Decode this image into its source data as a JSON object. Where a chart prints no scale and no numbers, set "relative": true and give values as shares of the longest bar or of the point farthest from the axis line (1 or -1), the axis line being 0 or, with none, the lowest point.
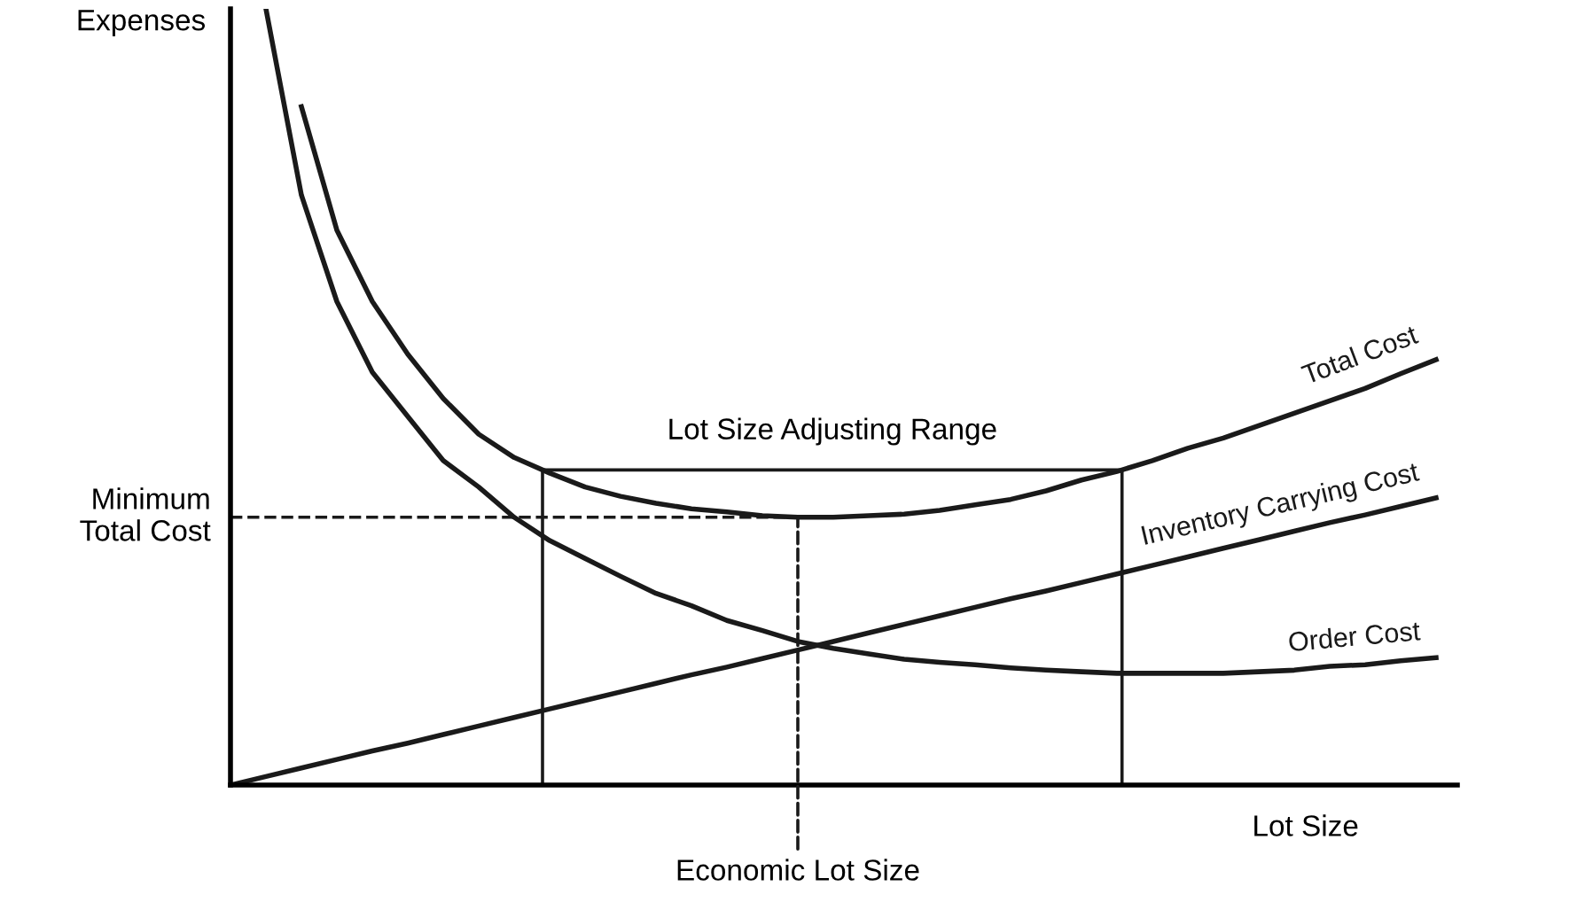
{
  "chart_data": {
    "type": "line",
    "relative": true,
    "ylabel": "Expenses",
    "xlabel": "Lot Size",
    "categories": [
      null,
      null,
      null,
      null,
      null,
      null,
      null,
      null,
      null,
      null,
      null,
      null,
      null,
      null,
      null,
      null,
      null,
      null,
      null,
      null,
      null,
      null,
      null,
      null,
      null,
      null,
      null,
      null,
      null,
      null,
      null,
      null,
      null,
      null,
      null
    ],
    "series": [
      {
        "name": "Total Cost",
        "color": "#1a1a1a",
        "values": [
          null,
          null,
          0.874,
          0.715,
          0.623,
          0.555,
          0.498,
          0.452,
          0.422,
          0.402,
          0.384,
          0.372,
          0.363,
          0.356,
          0.352,
          0.347,
          0.345,
          0.345,
          0.347,
          0.349,
          0.354,
          0.361,
          0.368,
          0.379,
          0.393,
          0.404,
          0.418,
          0.434,
          0.447,
          0.463,
          0.479,
          0.495,
          0.511,
          0.53,
          0.548
        ]
      },
      {
        "name": "Inventory Carrying Cost",
        "color": "#1a1a1a",
        "values": [
          0,
          0.011,
          0.022,
          0.033,
          0.044,
          0.054,
          0.065,
          0.076,
          0.087,
          0.098,
          0.109,
          0.12,
          0.131,
          0.142,
          0.152,
          0.163,
          0.174,
          0.185,
          0.196,
          0.207,
          0.218,
          0.229,
          0.24,
          0.25,
          0.261,
          0.272,
          0.283,
          0.294,
          0.305,
          0.316,
          0.327,
          0.338,
          0.348,
          0.359,
          0.37
        ]
      },
      {
        "name": "Order Cost",
        "color": "#1a1a1a",
        "values": [
          null,
          1.0,
          0.76,
          0.623,
          0.532,
          0.475,
          0.418,
          0.384,
          0.345,
          0.315,
          0.292,
          0.269,
          0.247,
          0.231,
          0.212,
          0.199,
          0.185,
          0.176,
          0.169,
          0.162,
          0.158,
          0.155,
          0.151,
          0.148,
          0.146,
          0.144,
          0.144,
          0.144,
          0.144,
          0.146,
          0.148,
          0.153,
          0.155,
          0.16,
          0.164
        ]
      }
    ],
    "ref_lines": [
      {
        "axis": "y",
        "value": 0.345,
        "label": "Minimum\nTotal Cost",
        "line_style": "dashed",
        "color": "#1a1a1a"
      },
      {
        "axis": "y",
        "value": 0.406,
        "label": "Lot Size Adjusting Range",
        "line_style": "solid",
        "color": "#1a1a1a"
      }
    ],
    "annotations": [
      "Economic Lot Size"
    ],
    "grid": false,
    "legend": false,
    "marker": "none",
    "line_style": "solid"
  }
}
